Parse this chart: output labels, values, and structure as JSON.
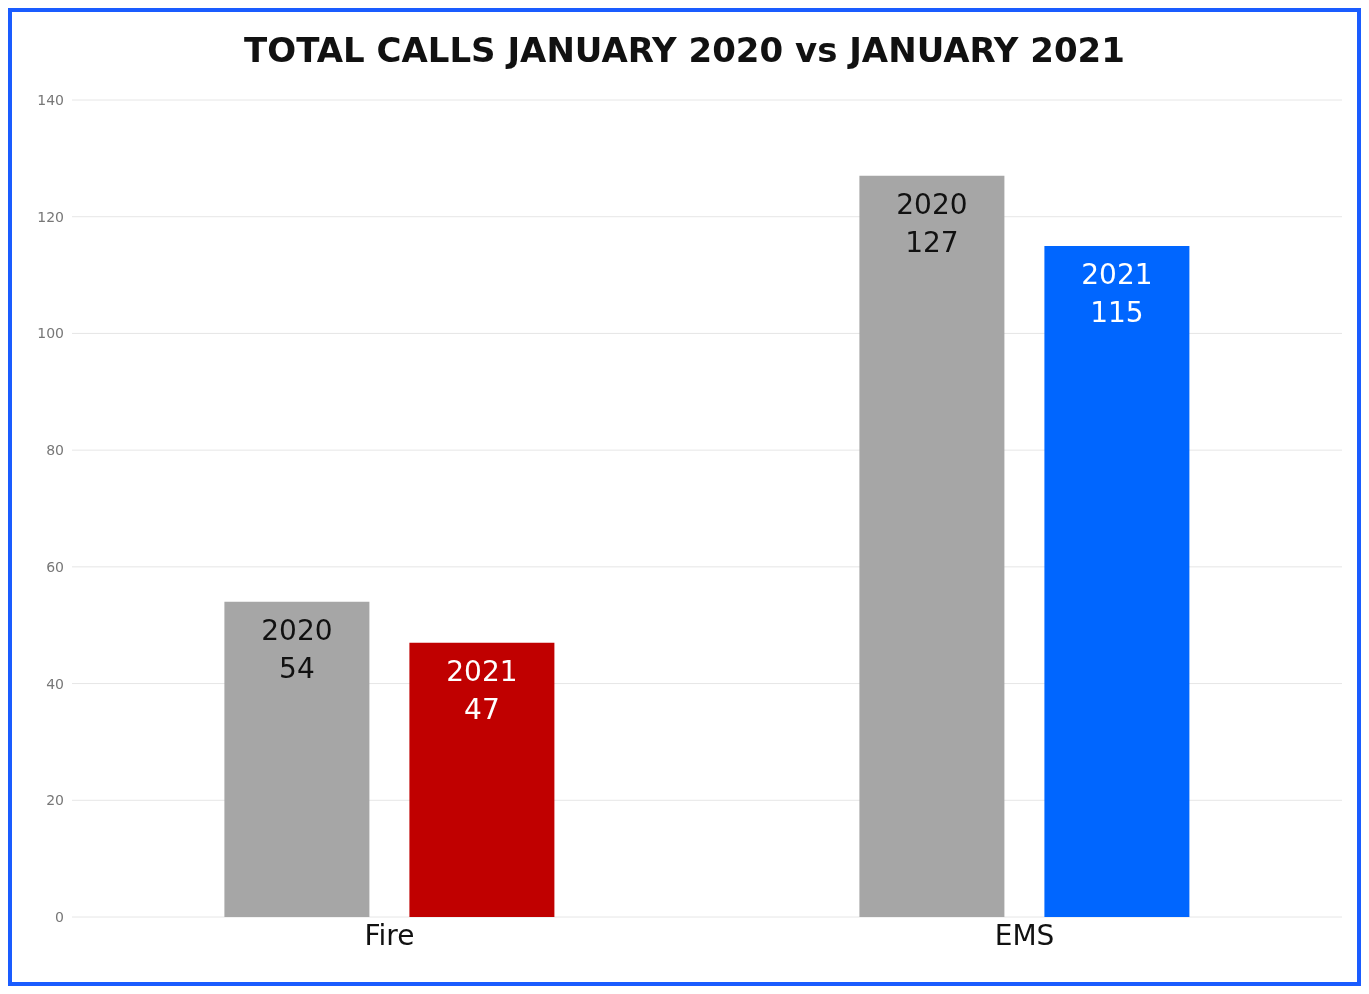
{
  "chart_data": {
    "type": "bar",
    "title": "TOTAL CALLS JANUARY 2020 vs JANUARY 2021",
    "categories": [
      "Fire",
      "EMS"
    ],
    "series": [
      {
        "name": "2020",
        "color": "#a6a6a6",
        "values": [
          54,
          127
        ]
      },
      {
        "name": "2021",
        "colors": [
          "#c00000",
          "#0066ff"
        ],
        "values": [
          47,
          115
        ]
      }
    ],
    "ylim": [
      0,
      140
    ],
    "yticks": [
      0,
      20,
      40,
      60,
      80,
      100,
      120,
      140
    ],
    "grid": "y",
    "data_labels": true,
    "legend": false
  }
}
